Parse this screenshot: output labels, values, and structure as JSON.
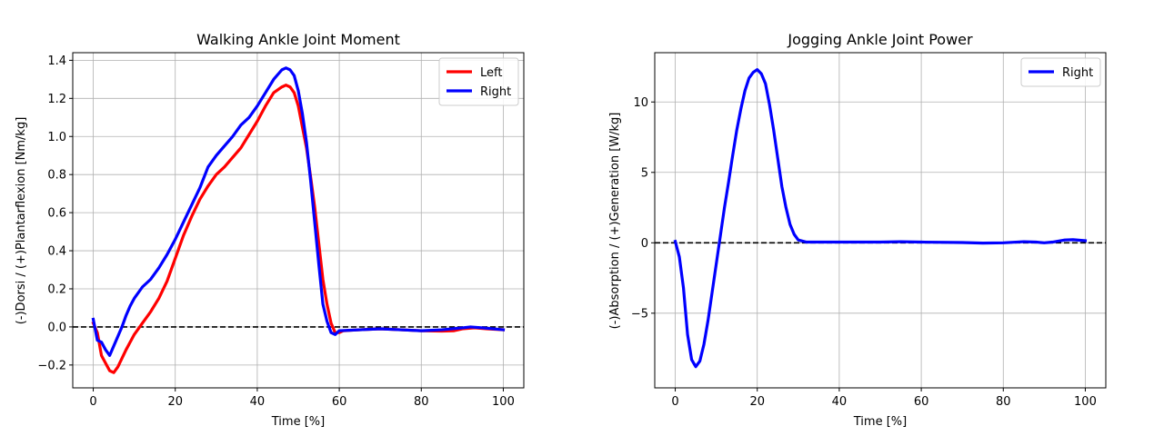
{
  "chart_data": [
    {
      "type": "line",
      "title": "Walking Ankle Joint Moment",
      "xlabel": "Time [%]",
      "ylabel": "(-)Dorsi / (+)Plantarflexion [Nm/kg]",
      "xlim": [
        -5,
        105
      ],
      "ylim": [
        -0.32,
        1.44
      ],
      "xticks": [
        0,
        20,
        40,
        60,
        80,
        100
      ],
      "yticks": [
        -0.2,
        0.0,
        0.2,
        0.4,
        0.6,
        0.8,
        1.0,
        1.2,
        1.4
      ],
      "grid": true,
      "zero_line": true,
      "legend": {
        "position": "top-right",
        "entries": [
          "Left",
          "Right"
        ]
      },
      "series": [
        {
          "name": "Left",
          "color": "#ff0000",
          "points": [
            [
              0,
              0.02
            ],
            [
              1,
              -0.03
            ],
            [
              2,
              -0.15
            ],
            [
              3,
              -0.19
            ],
            [
              4,
              -0.23
            ],
            [
              5,
              -0.24
            ],
            [
              6,
              -0.21
            ],
            [
              8,
              -0.12
            ],
            [
              10,
              -0.04
            ],
            [
              12,
              0.02
            ],
            [
              14,
              0.08
            ],
            [
              16,
              0.15
            ],
            [
              18,
              0.24
            ],
            [
              20,
              0.36
            ],
            [
              22,
              0.48
            ],
            [
              24,
              0.58
            ],
            [
              26,
              0.67
            ],
            [
              28,
              0.74
            ],
            [
              30,
              0.8
            ],
            [
              32,
              0.84
            ],
            [
              34,
              0.89
            ],
            [
              36,
              0.94
            ],
            [
              38,
              1.01
            ],
            [
              40,
              1.08
            ],
            [
              42,
              1.16
            ],
            [
              44,
              1.23
            ],
            [
              46,
              1.26
            ],
            [
              47,
              1.27
            ],
            [
              48,
              1.26
            ],
            [
              49,
              1.23
            ],
            [
              50,
              1.16
            ],
            [
              51,
              1.05
            ],
            [
              52,
              0.94
            ],
            [
              53,
              0.79
            ],
            [
              54,
              0.63
            ],
            [
              55,
              0.44
            ],
            [
              56,
              0.25
            ],
            [
              57,
              0.12
            ],
            [
              58,
              0.02
            ],
            [
              59,
              -0.03
            ],
            [
              60,
              -0.03
            ],
            [
              61,
              -0.02
            ],
            [
              65,
              -0.015
            ],
            [
              70,
              -0.01
            ],
            [
              75,
              -0.015
            ],
            [
              80,
              -0.02
            ],
            [
              85,
              -0.022
            ],
            [
              88,
              -0.02
            ],
            [
              90,
              -0.01
            ],
            [
              93,
              -0.005
            ],
            [
              96,
              -0.01
            ],
            [
              100,
              -0.015
            ]
          ]
        },
        {
          "name": "Right",
          "color": "#0000ff",
          "points": [
            [
              0,
              0.04
            ],
            [
              1,
              -0.07
            ],
            [
              2,
              -0.08
            ],
            [
              3,
              -0.12
            ],
            [
              4,
              -0.15
            ],
            [
              5,
              -0.1
            ],
            [
              6,
              -0.05
            ],
            [
              7,
              0.0
            ],
            [
              8,
              0.06
            ],
            [
              9,
              0.11
            ],
            [
              10,
              0.15
            ],
            [
              12,
              0.21
            ],
            [
              14,
              0.25
            ],
            [
              16,
              0.31
            ],
            [
              18,
              0.38
            ],
            [
              20,
              0.46
            ],
            [
              22,
              0.55
            ],
            [
              24,
              0.64
            ],
            [
              26,
              0.73
            ],
            [
              28,
              0.84
            ],
            [
              30,
              0.9
            ],
            [
              32,
              0.95
            ],
            [
              34,
              1.0
            ],
            [
              36,
              1.06
            ],
            [
              38,
              1.1
            ],
            [
              40,
              1.16
            ],
            [
              42,
              1.23
            ],
            [
              44,
              1.3
            ],
            [
              46,
              1.35
            ],
            [
              47,
              1.36
            ],
            [
              48,
              1.35
            ],
            [
              49,
              1.32
            ],
            [
              50,
              1.24
            ],
            [
              51,
              1.12
            ],
            [
              52,
              0.97
            ],
            [
              53,
              0.77
            ],
            [
              54,
              0.55
            ],
            [
              55,
              0.33
            ],
            [
              56,
              0.12
            ],
            [
              57,
              0.03
            ],
            [
              58,
              -0.03
            ],
            [
              59,
              -0.04
            ],
            [
              60,
              -0.02
            ],
            [
              65,
              -0.015
            ],
            [
              70,
              -0.01
            ],
            [
              75,
              -0.015
            ],
            [
              80,
              -0.02
            ],
            [
              85,
              -0.015
            ],
            [
              90,
              -0.005
            ],
            [
              92,
              0.0
            ],
            [
              95,
              -0.005
            ],
            [
              100,
              -0.015
            ]
          ]
        }
      ]
    },
    {
      "type": "line",
      "title": "Jogging Ankle Joint Power",
      "xlabel": "Time [%]",
      "ylabel": "(-)Absorption / (+)Generation [W/kg]",
      "xlim": [
        -5,
        105
      ],
      "ylim": [
        -10.3,
        13.5
      ],
      "xticks": [
        0,
        20,
        40,
        60,
        80,
        100
      ],
      "yticks": [
        -5,
        0,
        5,
        10
      ],
      "grid": true,
      "zero_line": true,
      "legend": {
        "position": "top-right",
        "entries": [
          "Right"
        ]
      },
      "series": [
        {
          "name": "Right",
          "color": "#0000ff",
          "points": [
            [
              0,
              0.1
            ],
            [
              1,
              -1.0
            ],
            [
              2,
              -3.2
            ],
            [
              3,
              -6.5
            ],
            [
              4,
              -8.3
            ],
            [
              5,
              -8.8
            ],
            [
              6,
              -8.4
            ],
            [
              7,
              -7.2
            ],
            [
              8,
              -5.5
            ],
            [
              9,
              -3.5
            ],
            [
              10,
              -1.5
            ],
            [
              11,
              0.5
            ],
            [
              12,
              2.5
            ],
            [
              13,
              4.3
            ],
            [
              14,
              6.2
            ],
            [
              15,
              8.0
            ],
            [
              16,
              9.5
            ],
            [
              17,
              10.8
            ],
            [
              18,
              11.7
            ],
            [
              19,
              12.1
            ],
            [
              20,
              12.3
            ],
            [
              21,
              12.0
            ],
            [
              22,
              11.3
            ],
            [
              23,
              9.8
            ],
            [
              24,
              8.0
            ],
            [
              25,
              6.0
            ],
            [
              26,
              4.0
            ],
            [
              27,
              2.5
            ],
            [
              28,
              1.3
            ],
            [
              29,
              0.6
            ],
            [
              30,
              0.2
            ],
            [
              32,
              0.05
            ],
            [
              40,
              0.05
            ],
            [
              50,
              0.05
            ],
            [
              55,
              0.08
            ],
            [
              60,
              0.05
            ],
            [
              70,
              0.02
            ],
            [
              75,
              -0.02
            ],
            [
              80,
              0.0
            ],
            [
              85,
              0.08
            ],
            [
              88,
              0.05
            ],
            [
              90,
              0.0
            ],
            [
              92,
              0.05
            ],
            [
              95,
              0.2
            ],
            [
              97,
              0.22
            ],
            [
              100,
              0.15
            ]
          ]
        }
      ]
    }
  ]
}
